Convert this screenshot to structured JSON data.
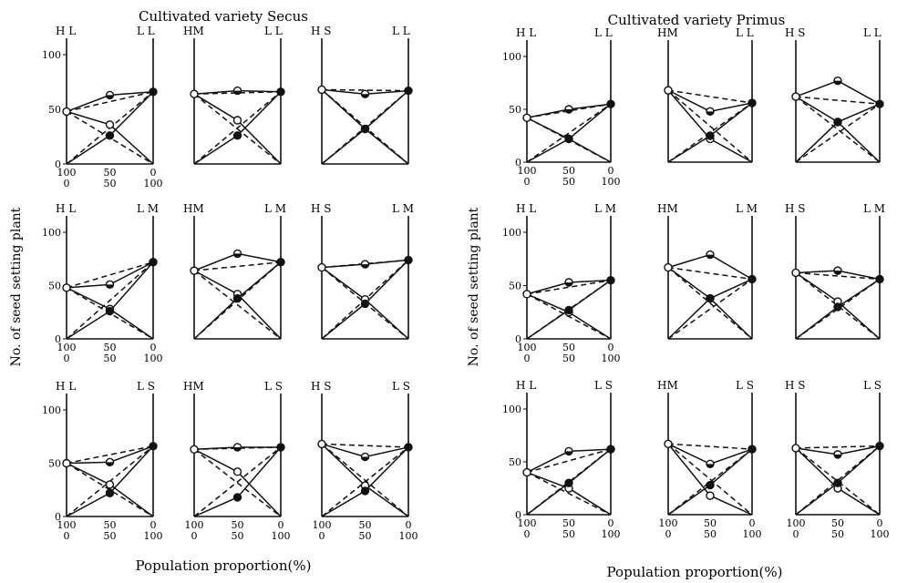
{
  "figures": [
    {
      "title": "Cultivated variety Secus",
      "ylabel": "No. of seed setting plant",
      "xlabel": "Population proportion(%)",
      "yticks": [
        "0",
        "50",
        "100"
      ],
      "xticks_top": [
        "100",
        "50",
        "0"
      ],
      "xticks_bottom": [
        "0",
        "50",
        "100"
      ]
    },
    {
      "title": "Cultivated variety Primus",
      "ylabel": "No. of seed setting plant",
      "xlabel": "Population proportion(%)",
      "yticks": [
        "0",
        "50",
        "100"
      ],
      "xticks_top": [
        "100",
        "50",
        "0"
      ],
      "xticks_bottom": [
        "0",
        "50",
        "100"
      ]
    }
  ],
  "chart_data": [
    {
      "type": "line",
      "title": "Cultivated variety Secus",
      "xlabel": "Population proportion(%)",
      "ylabel": "No. of seed setting plant",
      "ylim": [
        0,
        100
      ],
      "x": [
        100,
        50,
        0
      ],
      "panels": [
        {
          "left": "H L",
          "right": "L L",
          "mix": [
            48,
            63,
            66
          ],
          "mono_open": [
            48,
            36,
            0
          ],
          "mono_filled": [
            0,
            26,
            66
          ]
        },
        {
          "left": "HM",
          "right": "L L",
          "mix": [
            64,
            67,
            66
          ],
          "mono_open": [
            64,
            40,
            0
          ],
          "mono_filled": [
            0,
            26,
            66
          ]
        },
        {
          "left": "H S",
          "right": "L L",
          "mix": [
            68,
            64,
            67
          ],
          "mono_open": [
            68,
            32,
            0
          ],
          "mono_filled": [
            0,
            32,
            67
          ]
        },
        {
          "left": "H L",
          "right": "L M",
          "mix": [
            48,
            51,
            72
          ],
          "mono_open": [
            48,
            28,
            0
          ],
          "mono_filled": [
            0,
            26,
            72
          ]
        },
        {
          "left": "HM",
          "right": "L M",
          "mix": [
            64,
            80,
            72
          ],
          "mono_open": [
            64,
            42,
            0
          ],
          "mono_filled": [
            0,
            38,
            72
          ]
        },
        {
          "left": "H S",
          "right": "L M",
          "mix": [
            67,
            70,
            74
          ],
          "mono_open": [
            67,
            37,
            0
          ],
          "mono_filled": [
            0,
            33,
            74
          ]
        },
        {
          "left": "H L",
          "right": "L S",
          "mix": [
            50,
            51,
            66
          ],
          "mono_open": [
            50,
            30,
            0
          ],
          "mono_filled": [
            0,
            22,
            66
          ]
        },
        {
          "left": "HM",
          "right": "L S",
          "mix": [
            63,
            65,
            65
          ],
          "mono_open": [
            63,
            42,
            0
          ],
          "mono_filled": [
            0,
            18,
            65
          ]
        },
        {
          "left": "H S",
          "right": "L S",
          "mix": [
            68,
            56,
            65
          ],
          "mono_open": [
            68,
            29,
            0
          ],
          "mono_filled": [
            0,
            24,
            65
          ]
        }
      ]
    },
    {
      "type": "line",
      "title": "Cultivated variety Primus",
      "xlabel": "Population proportion(%)",
      "ylabel": "No. of seed setting plant",
      "ylim": [
        0,
        100
      ],
      "x": [
        100,
        50,
        0
      ],
      "panels": [
        {
          "left": "H L",
          "right": "L L",
          "mix": [
            42,
            50,
            55
          ],
          "mono_open": [
            42,
            22,
            0
          ],
          "mono_filled": [
            0,
            22,
            55
          ]
        },
        {
          "left": "HM",
          "right": "L L",
          "mix": [
            68,
            48,
            56
          ],
          "mono_open": [
            68,
            22,
            0
          ],
          "mono_filled": [
            0,
            25,
            56
          ]
        },
        {
          "left": "H S",
          "right": "L L",
          "mix": [
            62,
            77,
            55
          ],
          "mono_open": [
            62,
            38,
            0
          ],
          "mono_filled": [
            0,
            38,
            55
          ]
        },
        {
          "left": "H L",
          "right": "L M",
          "mix": [
            42,
            53,
            55
          ],
          "mono_open": [
            42,
            25,
            0
          ],
          "mono_filled": [
            0,
            27,
            55
          ]
        },
        {
          "left": "HM",
          "right": "L M",
          "mix": [
            67,
            79,
            56
          ],
          "mono_open": [
            67,
            38,
            0
          ],
          "mono_filled": [
            0,
            38,
            56
          ]
        },
        {
          "left": "H S",
          "right": "L M",
          "mix": [
            62,
            64,
            56
          ],
          "mono_open": [
            62,
            35,
            0
          ],
          "mono_filled": [
            0,
            30,
            56
          ]
        },
        {
          "left": "H L",
          "right": "L S",
          "mix": [
            40,
            60,
            62
          ],
          "mono_open": [
            40,
            25,
            0
          ],
          "mono_filled": [
            0,
            30,
            62
          ]
        },
        {
          "left": "HM",
          "right": "L S",
          "mix": [
            67,
            48,
            62
          ],
          "mono_open": [
            67,
            18,
            0
          ],
          "mono_filled": [
            0,
            28,
            62
          ]
        },
        {
          "left": "H S",
          "right": "L S",
          "mix": [
            63,
            57,
            65
          ],
          "mono_open": [
            63,
            25,
            0
          ],
          "mono_filled": [
            0,
            30,
            65
          ]
        }
      ]
    }
  ]
}
